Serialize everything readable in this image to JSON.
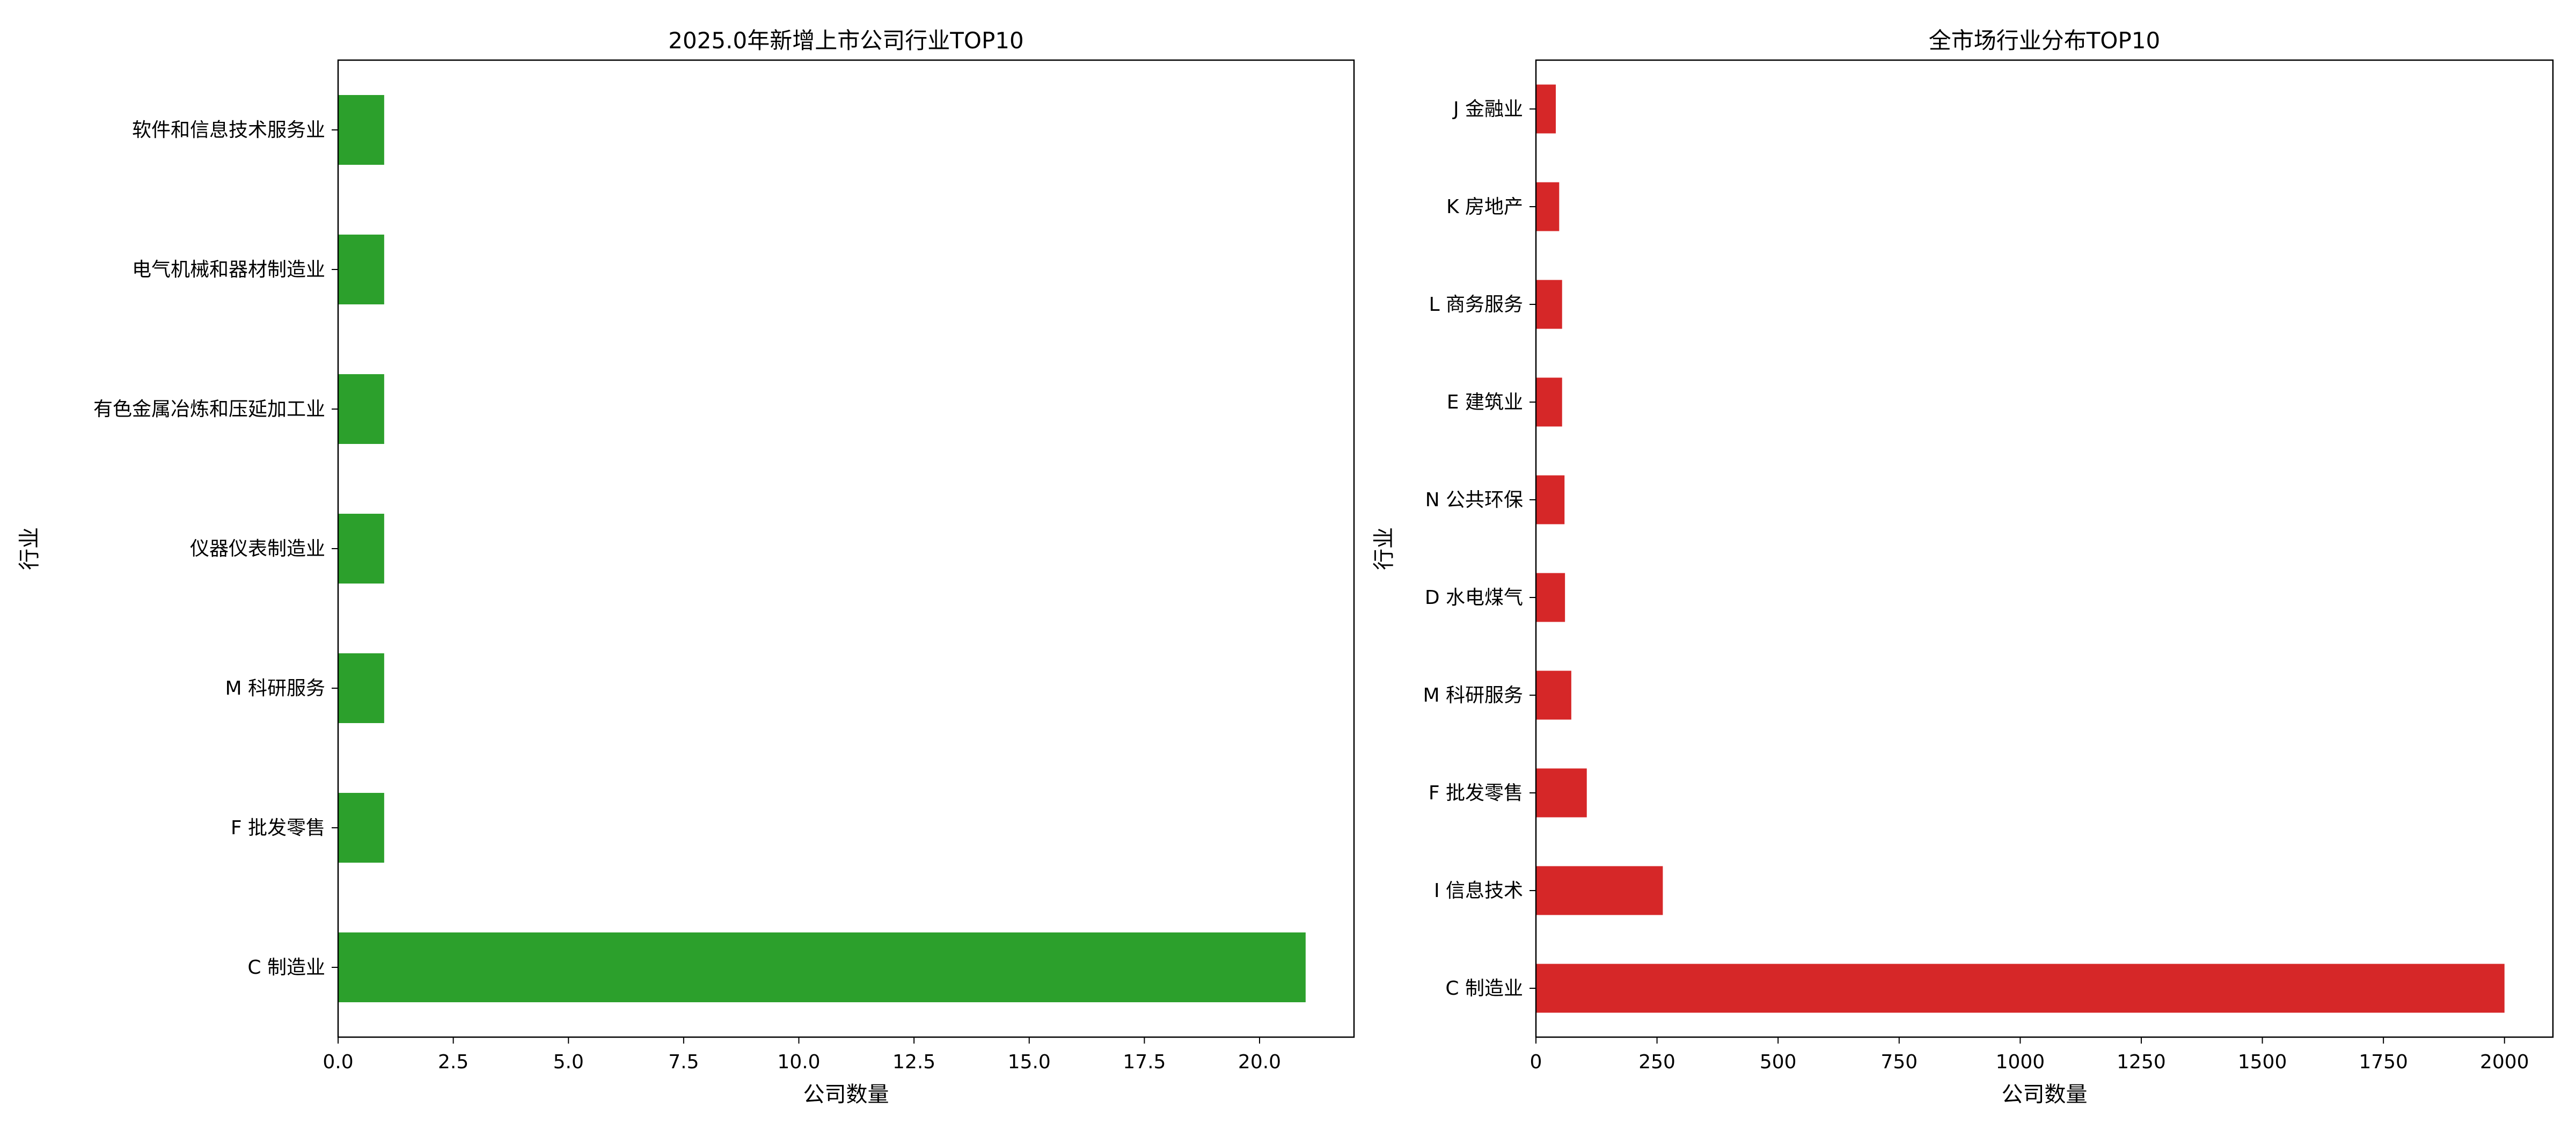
{
  "chart_data": [
    {
      "type": "bar",
      "orientation": "horizontal",
      "title": "2025.0年新增上市公司行业TOP10",
      "xlabel": "公司数量",
      "ylabel": "行业",
      "color": "#2ca02c",
      "categories": [
        "C 制造业",
        "F 批发零售",
        "M 科研服务",
        "仪器仪表制造业",
        "有色金属冶炼和压延加工业",
        "电气机械和器材制造业",
        "软件和信息技术服务业"
      ],
      "values": [
        21,
        1,
        1,
        1,
        1,
        1,
        1
      ],
      "xlim": [
        0,
        22.05
      ],
      "xticks": [
        "0.0",
        "2.5",
        "5.0",
        "7.5",
        "10.0",
        "12.5",
        "15.0",
        "17.5",
        "20.0"
      ],
      "grid": false,
      "legend": "none"
    },
    {
      "type": "bar",
      "orientation": "horizontal",
      "title": "全市场行业分布TOP10",
      "xlabel": "公司数量",
      "ylabel": "行业",
      "color": "#d62728",
      "categories": [
        "C 制造业",
        "I 信息技术",
        "F 批发零售",
        "M 科研服务",
        "D 水电煤气",
        "N 公共环保",
        "E 建筑业",
        "L 商务服务",
        "K 房地产",
        "J 金融业"
      ],
      "values": [
        2000,
        262,
        105,
        73,
        60,
        59,
        54,
        54,
        48,
        41
      ],
      "xlim": [
        0,
        2100
      ],
      "xticks": [
        "0",
        "250",
        "500",
        "750",
        "1000",
        "1250",
        "1500",
        "1750",
        "2000"
      ],
      "grid": false,
      "legend": "none"
    }
  ]
}
